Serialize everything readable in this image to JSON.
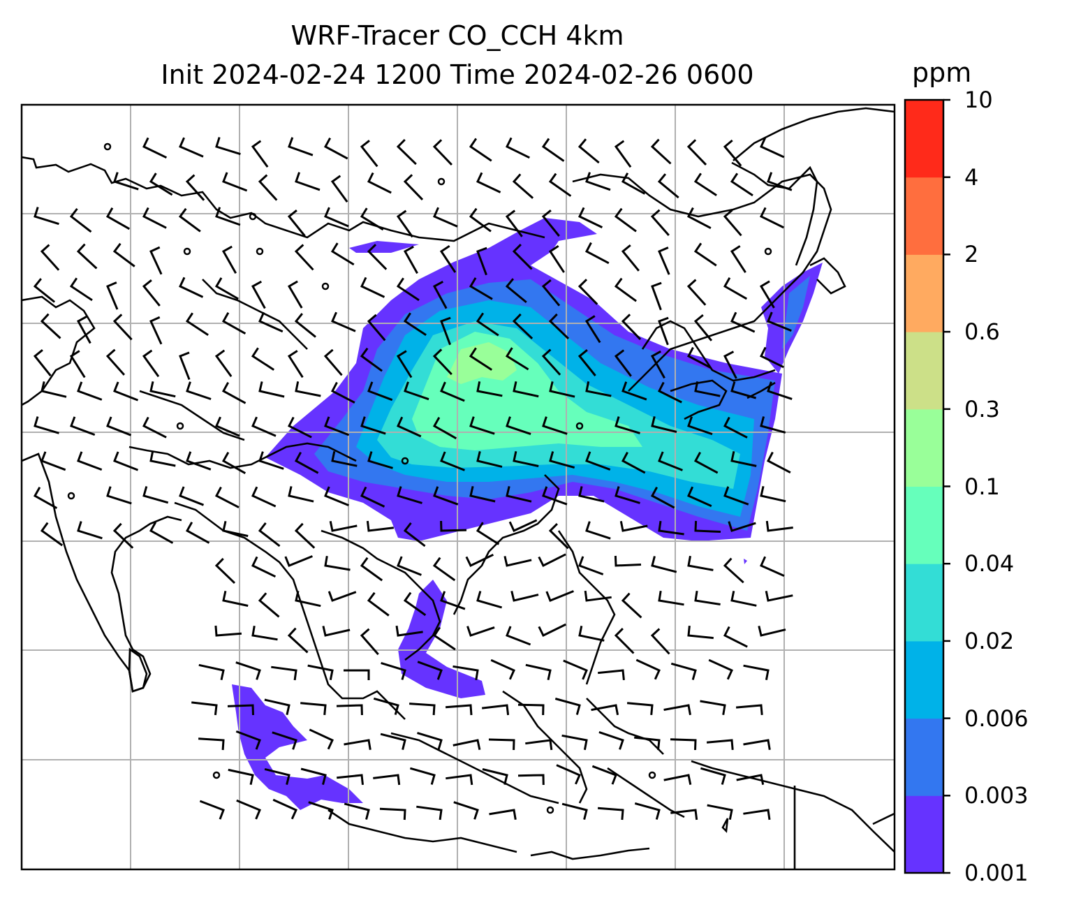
{
  "title": {
    "line1": "WRF-Tracer CO_CCH 4km",
    "line2": "Init 2024-02-24 1200 Time 2024-02-26 0600"
  },
  "colorbar": {
    "unit": "ppm",
    "tick_labels": [
      "0.001",
      "0.003",
      "0.006",
      "0.02",
      "0.04",
      "0.1",
      "0.3",
      "0.6",
      "2",
      "4",
      "10"
    ],
    "colors": [
      "#6633ff",
      "#3377f0",
      "#00b2e8",
      "#33ddd6",
      "#66ffbb",
      "#99ff99",
      "#cce088",
      "#ffaa60",
      "#ff6e3e",
      "#ff2a1a"
    ]
  },
  "map": {
    "gridlines": true,
    "wind_barbs": true,
    "coastlines": true
  }
}
